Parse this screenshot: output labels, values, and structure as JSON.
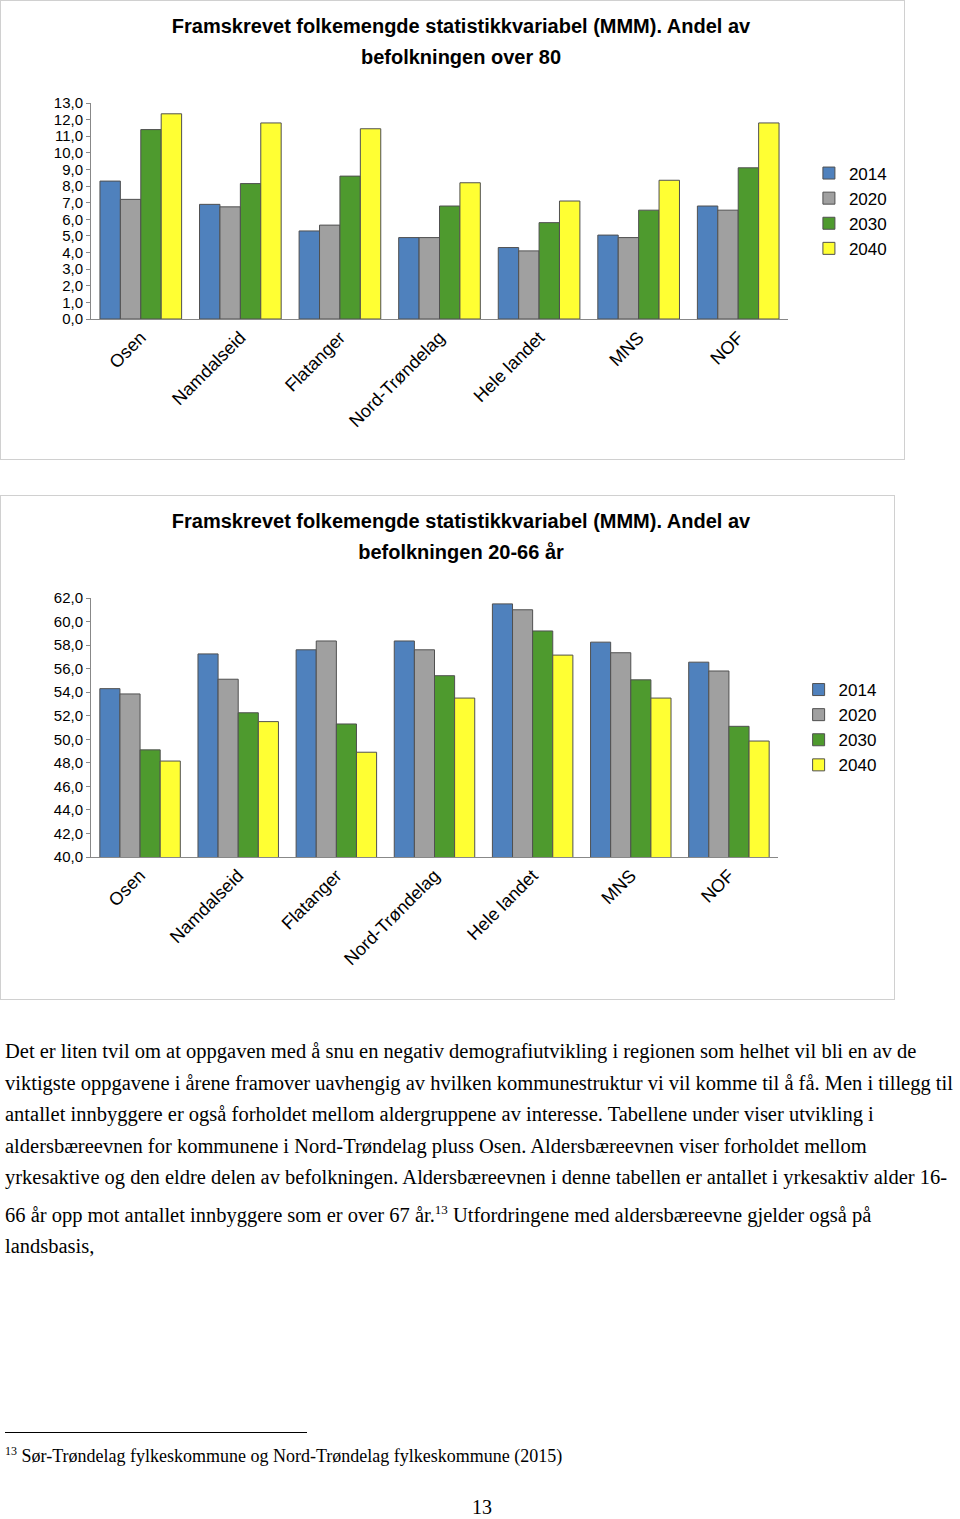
{
  "chart_data": [
    {
      "type": "bar",
      "title": "Framskrevet folkemengde statistikkvariabel (MMM). Andel av befolkningen over 80",
      "categories": [
        "Osen",
        "Namdalseid",
        "Flatanger",
        "Nord-Trøndelag",
        "Hele landet",
        "MNS",
        "NOF"
      ],
      "series": [
        {
          "name": "2014",
          "color": "#4f81bd",
          "values": [
            8.3,
            6.9,
            5.3,
            4.9,
            4.3,
            5.05,
            6.8
          ]
        },
        {
          "name": "2020",
          "color": "#a0a0a0",
          "values": [
            7.2,
            6.75,
            5.65,
            4.9,
            4.1,
            4.9,
            6.55
          ]
        },
        {
          "name": "2030",
          "color": "#4e9a2e",
          "values": [
            11.4,
            8.15,
            8.6,
            6.8,
            5.8,
            6.55,
            9.1
          ]
        },
        {
          "name": "2040",
          "color": "#ffff33",
          "values": [
            12.35,
            11.8,
            11.45,
            8.2,
            7.1,
            8.35,
            11.8
          ]
        }
      ],
      "ylim": [
        0,
        13
      ],
      "yticks": [
        {
          "value": 0,
          "label": "0,0"
        },
        {
          "value": 1,
          "label": "1,0"
        },
        {
          "value": 2,
          "label": "2,0"
        },
        {
          "value": 3,
          "label": "3,0"
        },
        {
          "value": 4,
          "label": "4,0"
        },
        {
          "value": 5,
          "label": "5,0"
        },
        {
          "value": 6,
          "label": "6,0"
        },
        {
          "value": 7,
          "label": "7,0"
        },
        {
          "value": 8,
          "label": "8,0"
        },
        {
          "value": 9,
          "label": "9,0"
        },
        {
          "value": 10,
          "label": "10,0"
        },
        {
          "value": 11,
          "label": "11,0"
        },
        {
          "value": 12,
          "label": "12,0"
        },
        {
          "value": 13,
          "label": "13,0"
        }
      ],
      "grid": false,
      "legend": "right"
    },
    {
      "type": "bar",
      "title": "Framskrevet folkemengde statistikkvariabel (MMM). Andel av befolkningen 20-66 år",
      "categories": [
        "Osen",
        "Namdalseid",
        "Flatanger",
        "Nord-Trøndelag",
        "Hele landet",
        "MNS",
        "NOF"
      ],
      "series": [
        {
          "name": "2014",
          "color": "#4f81bd",
          "values": [
            54.3,
            57.25,
            57.6,
            58.35,
            61.5,
            58.25,
            56.55
          ]
        },
        {
          "name": "2020",
          "color": "#a0a0a0",
          "values": [
            53.85,
            55.1,
            58.35,
            57.6,
            61.0,
            57.35,
            55.8
          ]
        },
        {
          "name": "2030",
          "color": "#4e9a2e",
          "values": [
            49.1,
            52.25,
            51.3,
            55.4,
            59.2,
            55.05,
            51.1
          ]
        },
        {
          "name": "2040",
          "color": "#ffff33",
          "values": [
            48.15,
            51.5,
            48.9,
            53.5,
            57.15,
            53.5,
            49.85
          ]
        }
      ],
      "ylim": [
        40,
        62
      ],
      "yticks": [
        {
          "value": 40,
          "label": "40,0"
        },
        {
          "value": 42,
          "label": "42,0"
        },
        {
          "value": 44,
          "label": "44,0"
        },
        {
          "value": 46,
          "label": "46,0"
        },
        {
          "value": 48,
          "label": "48,0"
        },
        {
          "value": 50,
          "label": "50,0"
        },
        {
          "value": 52,
          "label": "52,0"
        },
        {
          "value": 54,
          "label": "54,0"
        },
        {
          "value": 56,
          "label": "56,0"
        },
        {
          "value": 58,
          "label": "58,0"
        },
        {
          "value": 60,
          "label": "60,0"
        },
        {
          "value": 62,
          "label": "62,0"
        }
      ],
      "grid": false,
      "legend": "right"
    }
  ],
  "document": {
    "paragraph": {
      "before": "Det er liten tvil om at oppgaven med å snu en negativ demografiutvikling i regionen som helhet vil bli en av de viktigste oppgavene i årene framover uavhengig av hvilken kommunestruktur vi vil komme til å få. Men i tillegg til antallet innbyggere er også forholdet mellom aldergruppene av interesse. Tabellene under viser utvikling i aldersbæreevnen for kommunene i Nord-Trøndelag pluss Osen. Aldersbæreevnen viser forholdet mellom yrkesaktive og den eldre delen av befolkningen. Aldersbæreevnen i denne tabellen er antallet i yrkesaktiv alder 16-66 år opp mot antallet innbyggere som er over 67 år.",
      "note_ref": "13",
      "after": " Utfordringene med aldersbæreevne gjelder også på landsbasis,"
    },
    "footnote": {
      "mark": "13",
      "text": "Sør-Trøndelag fylkeskommune og Nord-Trøndelag fylkeskommune (2015)"
    },
    "page_number": "13"
  }
}
